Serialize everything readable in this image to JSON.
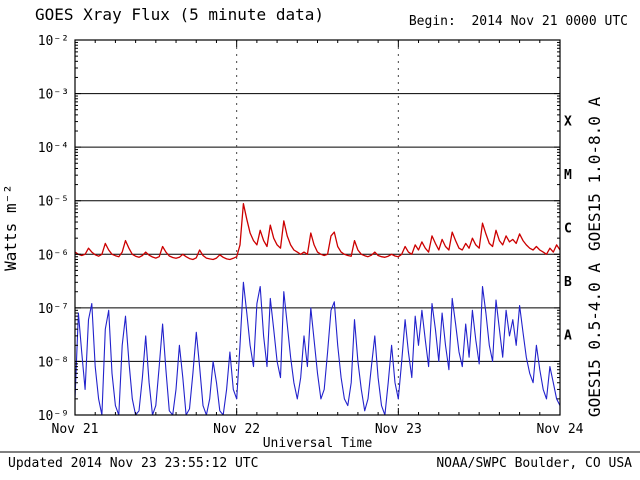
{
  "header": {
    "title": "GOES Xray Flux (5 minute data)",
    "begin_label": "Begin:  2014 Nov 21 0000 UTC"
  },
  "footer": {
    "updated": "Updated 2014 Nov 23 23:55:12 UTC",
    "credit": "NOAA/SWPC Boulder, CO USA"
  },
  "chart_data": {
    "type": "line",
    "title": "GOES Xray Flux (5 minute data)",
    "xlabel": "Universal Time",
    "ylabel": "Watts m⁻²",
    "begin_time": "2014 Nov 21 0000 UTC",
    "x_tick_labels": [
      "Nov 21",
      "Nov 22",
      "Nov 23",
      "Nov 24"
    ],
    "x_range_days": [
      0,
      3
    ],
    "y_scale": "log",
    "y_exponent_top": -2,
    "y_exponent_bottom": -9,
    "y_tick_labels": [
      "10⁻²",
      "10⁻³",
      "10⁻⁴",
      "10⁻⁵",
      "10⁻⁶",
      "10⁻⁷",
      "10⁻⁸",
      "10⁻⁹"
    ],
    "h_gridline_exponents": [
      -3,
      -4,
      -5,
      -6,
      -7,
      -8
    ],
    "v_dashed_gridlines_days": [
      1,
      2
    ],
    "flare_classes": [
      {
        "label": "X",
        "exponent_center": -3.5
      },
      {
        "label": "M",
        "exponent_center": -4.5
      },
      {
        "label": "C",
        "exponent_center": -5.5
      },
      {
        "label": "B",
        "exponent_center": -6.5
      },
      {
        "label": "A",
        "exponent_center": -7.5
      }
    ],
    "series": [
      {
        "name": "GOES15 1.0-8.0 A",
        "color": "#cc0000",
        "values": [
          1.1e-06,
          1e-06,
          9.5e-07,
          1e-06,
          1.3e-06,
          1.1e-06,
          9.8e-07,
          9.2e-07,
          1e-06,
          1.6e-06,
          1.2e-06,
          1e-06,
          9.4e-07,
          9e-07,
          1.1e-06,
          1.8e-06,
          1.3e-06,
          1e-06,
          9.2e-07,
          8.8e-07,
          9.5e-07,
          1.1e-06,
          9.6e-07,
          8.9e-07,
          8.5e-07,
          9e-07,
          1.4e-06,
          1.1e-06,
          9.3e-07,
          8.7e-07,
          8.4e-07,
          8.8e-07,
          1e-06,
          9e-07,
          8.3e-07,
          8e-07,
          8.6e-07,
          1.2e-06,
          9.5e-07,
          8.5e-07,
          8.2e-07,
          8e-07,
          8.5e-07,
          9.8e-07,
          8.8e-07,
          8.2e-07,
          8e-07,
          8.4e-07,
          9e-07,
          1.5e-06,
          8.8e-06,
          4.5e-06,
          2.5e-06,
          1.8e-06,
          1.5e-06,
          2.8e-06,
          1.8e-06,
          1.4e-06,
          3.5e-06,
          2e-06,
          1.5e-06,
          1.3e-06,
          4.2e-06,
          2.2e-06,
          1.5e-06,
          1.2e-06,
          1.1e-06,
          1e-06,
          1.1e-06,
          1e-06,
          2.5e-06,
          1.5e-06,
          1.1e-06,
          1e-06,
          9.5e-07,
          1e-06,
          2.2e-06,
          2.6e-06,
          1.4e-06,
          1.1e-06,
          1e-06,
          9.5e-07,
          9.2e-07,
          1.8e-06,
          1.2e-06,
          1e-06,
          9.4e-07,
          9e-07,
          9.6e-07,
          1.1e-06,
          9.5e-07,
          9e-07,
          8.8e-07,
          9.2e-07,
          1e-06,
          9.3e-07,
          9e-07,
          1e-06,
          1.4e-06,
          1.1e-06,
          1e-06,
          1.5e-06,
          1.2e-06,
          1.7e-06,
          1.3e-06,
          1.1e-06,
          2.2e-06,
          1.6e-06,
          1.2e-06,
          1.9e-06,
          1.4e-06,
          1.2e-06,
          2.6e-06,
          1.8e-06,
          1.3e-06,
          1.2e-06,
          1.6e-06,
          1.3e-06,
          2e-06,
          1.5e-06,
          1.3e-06,
          3.8e-06,
          2.4e-06,
          1.6e-06,
          1.4e-06,
          2.8e-06,
          1.8e-06,
          1.5e-06,
          2.2e-06,
          1.7e-06,
          1.9e-06,
          1.6e-06,
          2.4e-06,
          1.8e-06,
          1.5e-06,
          1.3e-06,
          1.2e-06,
          1.4e-06,
          1.2e-06,
          1.1e-06,
          1e-06,
          1.3e-06,
          1.1e-06,
          1.5e-06,
          1.2e-06
        ]
      },
      {
        "name": "GOES15 0.5-4.0 A",
        "color": "#2222cc",
        "values": [
          2e-09,
          8e-08,
          1.5e-08,
          3e-09,
          6e-08,
          1.2e-07,
          8e-09,
          2e-09,
          1e-09,
          4e-08,
          9e-08,
          6e-09,
          1.5e-09,
          1e-09,
          2e-08,
          7e-08,
          1e-08,
          2e-09,
          1e-09,
          1.2e-09,
          5e-09,
          3e-08,
          4e-09,
          1e-09,
          1.5e-09,
          8e-09,
          5e-08,
          7e-09,
          1.2e-09,
          1e-09,
          3e-09,
          2e-08,
          5e-09,
          1e-09,
          1.3e-09,
          6e-09,
          3.5e-08,
          8e-09,
          1.5e-09,
          1e-09,
          2e-09,
          1e-08,
          4e-09,
          1.2e-09,
          1e-09,
          3e-09,
          1.5e-08,
          3e-09,
          2e-09,
          2e-08,
          3e-07,
          8e-08,
          2e-08,
          8e-09,
          1.2e-07,
          2.5e-07,
          3e-08,
          8e-09,
          1.5e-07,
          4e-08,
          1e-08,
          5e-09,
          2e-07,
          5e-08,
          1.2e-08,
          4e-09,
          2e-09,
          5e-09,
          3e-08,
          8e-09,
          1e-07,
          2.5e-08,
          6e-09,
          2e-09,
          3e-09,
          1.5e-08,
          9e-08,
          1.3e-07,
          2e-08,
          5e-09,
          2e-09,
          1.5e-09,
          4e-09,
          6e-08,
          1e-08,
          3e-09,
          1.2e-09,
          2e-09,
          8e-09,
          3e-08,
          5e-09,
          1.5e-09,
          1e-09,
          4e-09,
          2e-08,
          4e-09,
          2e-09,
          1e-08,
          6e-08,
          1.5e-08,
          5e-09,
          7e-08,
          2e-08,
          9e-08,
          2.5e-08,
          8e-09,
          1.2e-07,
          4e-08,
          1e-08,
          8e-08,
          2e-08,
          7e-09,
          1.5e-07,
          5e-08,
          1.5e-08,
          8e-09,
          5e-08,
          1.2e-08,
          9e-08,
          2.5e-08,
          9e-09,
          2.5e-07,
          8e-08,
          2e-08,
          1e-08,
          1.4e-07,
          4e-08,
          1.2e-08,
          9e-08,
          3e-08,
          6e-08,
          2e-08,
          1.1e-07,
          3.5e-08,
          1.2e-08,
          6e-09,
          4e-09,
          2e-08,
          7e-09,
          3e-09,
          2e-09,
          8e-09,
          4e-09,
          2e-09,
          1.5e-09
        ]
      }
    ]
  }
}
